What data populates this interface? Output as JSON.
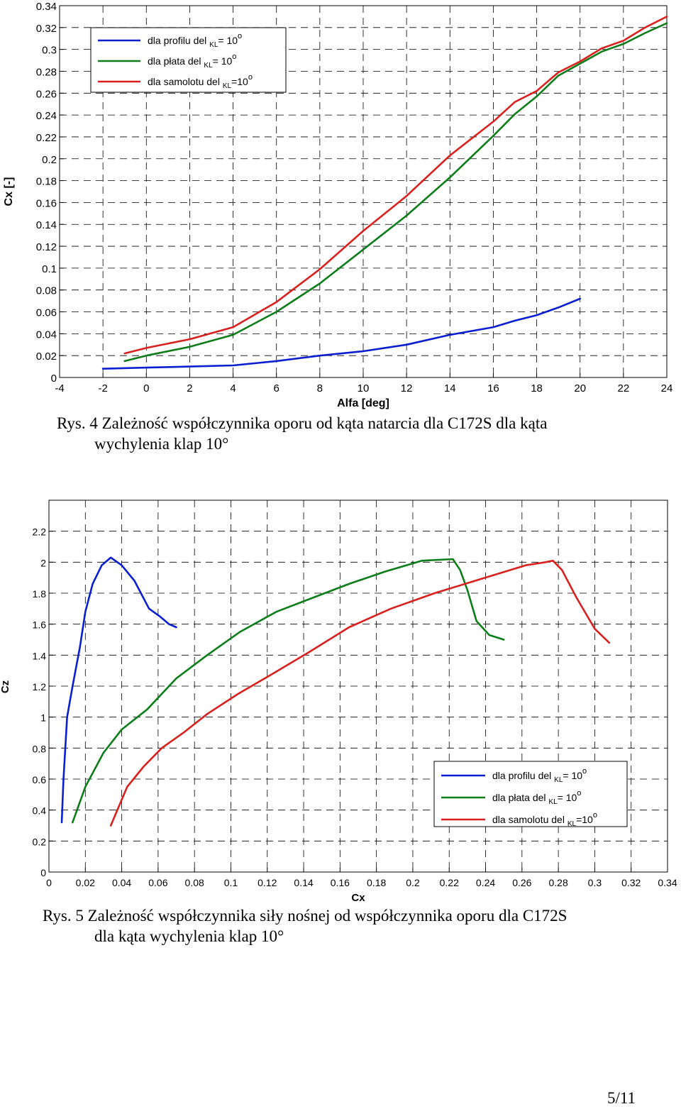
{
  "charts": [
    {
      "type": "line",
      "title": "",
      "xlabel": "Alfa [deg]",
      "ylabel": "Cx [-]",
      "xlim": [
        -4,
        24
      ],
      "ylim": [
        0,
        0.34
      ],
      "xticks": [
        -4,
        -2,
        0,
        2,
        4,
        6,
        8,
        10,
        12,
        14,
        16,
        18,
        20,
        22,
        24
      ],
      "xtick_labels": [
        "-4",
        "-2",
        "0",
        "2",
        "4",
        "6",
        "8",
        "10",
        "12",
        "14",
        "16",
        "18",
        "20",
        "22",
        "24"
      ],
      "yticks": [
        0,
        0.02,
        0.04,
        0.06,
        0.08,
        0.1,
        0.12,
        0.14,
        0.16,
        0.18,
        0.2,
        0.22,
        0.24,
        0.26,
        0.28,
        0.3,
        0.32,
        0.34
      ],
      "ytick_labels": [
        "0",
        "0.02",
        "0.04",
        "0.06",
        "0.08",
        "0.1",
        "0.12",
        "0.14",
        "0.16",
        "0.18",
        "0.2",
        "0.22",
        "0.24",
        "0.26",
        "0.28",
        "0.3",
        "0.32",
        "0.34"
      ],
      "grid": true,
      "legend_position": "top-left",
      "series": [
        {
          "name": "dla profilu del KL= 10 o",
          "color": "#0a1fd0",
          "x": [
            -2,
            0,
            2,
            4,
            6,
            8,
            10,
            12,
            14,
            16,
            17,
            18,
            19,
            20
          ],
          "y": [
            0.008,
            0.009,
            0.01,
            0.011,
            0.015,
            0.02,
            0.024,
            0.03,
            0.039,
            0.046,
            0.052,
            0.057,
            0.064,
            0.072
          ]
        },
        {
          "name": "dla płata del KL= 10 o",
          "color": "#0d7d1a",
          "x": [
            -1,
            0,
            2,
            4,
            6,
            8,
            10,
            12,
            14,
            16,
            17,
            18,
            19,
            20,
            21,
            22,
            23,
            24
          ],
          "y": [
            0.015,
            0.02,
            0.028,
            0.039,
            0.06,
            0.086,
            0.117,
            0.148,
            0.183,
            0.221,
            0.241,
            0.257,
            0.276,
            0.287,
            0.298,
            0.305,
            0.315,
            0.324
          ]
        },
        {
          "name": "dla samolotu del KL=10 o",
          "color": "#d8201e",
          "x": [
            -1,
            0,
            2,
            4,
            6,
            8,
            10,
            12,
            14,
            16,
            17,
            18,
            19,
            20,
            21,
            22,
            23,
            24
          ],
          "y": [
            0.022,
            0.027,
            0.035,
            0.046,
            0.069,
            0.099,
            0.134,
            0.166,
            0.203,
            0.234,
            0.252,
            0.262,
            0.279,
            0.289,
            0.301,
            0.308,
            0.32,
            0.33
          ]
        }
      ],
      "legend": [
        {
          "prefix": "dla profilu del",
          "sub": "KL",
          "suffix": "= 10",
          "sup": "o",
          "color": "#0a1fd0"
        },
        {
          "prefix": "dla płata del",
          "sub": "KL",
          "suffix": "= 10",
          "sup": "o",
          "color": "#0d7d1a"
        },
        {
          "prefix": "dla samolotu del",
          "sub": "KL",
          "suffix": "=10",
          "sup": "o",
          "color": "#d8201e"
        }
      ],
      "caption_line1": "Rys. 4 Zależność współczynnika oporu od kąta natarcia dla C172S dla kąta",
      "caption_line2": "wychylenia klap 10°"
    },
    {
      "type": "line",
      "title": "",
      "xlabel": "Cx",
      "ylabel": "Cz",
      "xlim": [
        0,
        0.34
      ],
      "ylim": [
        0,
        2.4
      ],
      "xticks": [
        0,
        0.02,
        0.04,
        0.06,
        0.08,
        0.1,
        0.12,
        0.14,
        0.16,
        0.18,
        0.2,
        0.22,
        0.24,
        0.26,
        0.28,
        0.3,
        0.32,
        0.34
      ],
      "xtick_labels": [
        "0",
        "0.02",
        "0.04",
        "0.06",
        "0.08",
        "0.1",
        "0.12",
        "0.14",
        "0.16",
        "0.18",
        "0.2",
        "0.22",
        "0.24",
        "0.26",
        "0.28",
        "0.3",
        "0.32",
        "0.34"
      ],
      "yticks": [
        0,
        0.2,
        0.4,
        0.6,
        0.8,
        1,
        1.2,
        1.4,
        1.6,
        1.8,
        2,
        2.2
      ],
      "ytick_labels": [
        "0",
        "0.2",
        "0.4",
        "0.6",
        "0.8",
        "1",
        "1.2",
        "1.4",
        "1.6",
        "1.8",
        "2",
        "2.2"
      ],
      "grid": true,
      "legend_position": "bottom-right",
      "series": [
        {
          "name": "dla profilu del KL= 10 o",
          "color": "#0a1fd0",
          "x": [
            0.007,
            0.008,
            0.01,
            0.013,
            0.017,
            0.02,
            0.024,
            0.029,
            0.034,
            0.04,
            0.047,
            0.055,
            0.061,
            0.066,
            0.07
          ],
          "y": [
            0.32,
            0.6,
            1.0,
            1.2,
            1.45,
            1.68,
            1.86,
            1.98,
            2.03,
            1.98,
            1.88,
            1.7,
            1.65,
            1.6,
            1.58
          ]
        },
        {
          "name": "dla płata del KL= 10 o",
          "color": "#0d7d1a",
          "x": [
            0.013,
            0.02,
            0.03,
            0.04,
            0.054,
            0.07,
            0.087,
            0.105,
            0.125,
            0.145,
            0.165,
            0.185,
            0.205,
            0.222,
            0.226,
            0.23,
            0.235,
            0.242,
            0.25
          ],
          "y": [
            0.32,
            0.55,
            0.77,
            0.92,
            1.05,
            1.25,
            1.4,
            1.55,
            1.68,
            1.77,
            1.86,
            1.94,
            2.01,
            2.02,
            1.95,
            1.82,
            1.62,
            1.53,
            1.5
          ]
        },
        {
          "name": "dla samolotu del KL=10 o",
          "color": "#d8201e",
          "x": [
            0.034,
            0.043,
            0.052,
            0.062,
            0.074,
            0.087,
            0.104,
            0.123,
            0.143,
            0.165,
            0.188,
            0.212,
            0.237,
            0.262,
            0.273,
            0.277,
            0.282,
            0.29,
            0.3,
            0.308
          ],
          "y": [
            0.3,
            0.55,
            0.68,
            0.8,
            0.9,
            1.02,
            1.15,
            1.28,
            1.42,
            1.58,
            1.7,
            1.8,
            1.89,
            1.98,
            2.0,
            2.01,
            1.95,
            1.77,
            1.57,
            1.48
          ]
        }
      ],
      "legend": [
        {
          "prefix": "dla profilu del",
          "sub": "KL",
          "suffix": "= 10",
          "sup": "o",
          "color": "#0a1fd0"
        },
        {
          "prefix": "dla płata del",
          "sub": "KL",
          "suffix": "= 10",
          "sup": "o",
          "color": "#0d7d1a"
        },
        {
          "prefix": "dla samolotu del",
          "sub": "KL",
          "suffix": "=10",
          "sup": "o",
          "color": "#d8201e"
        }
      ],
      "caption_line1": "Rys. 5 Zależność współczynnika siły nośnej od współczynnika oporu dla C172S",
      "caption_line2": "dla kąta wychylenia klap 10°"
    }
  ],
  "page_number": "5/11"
}
